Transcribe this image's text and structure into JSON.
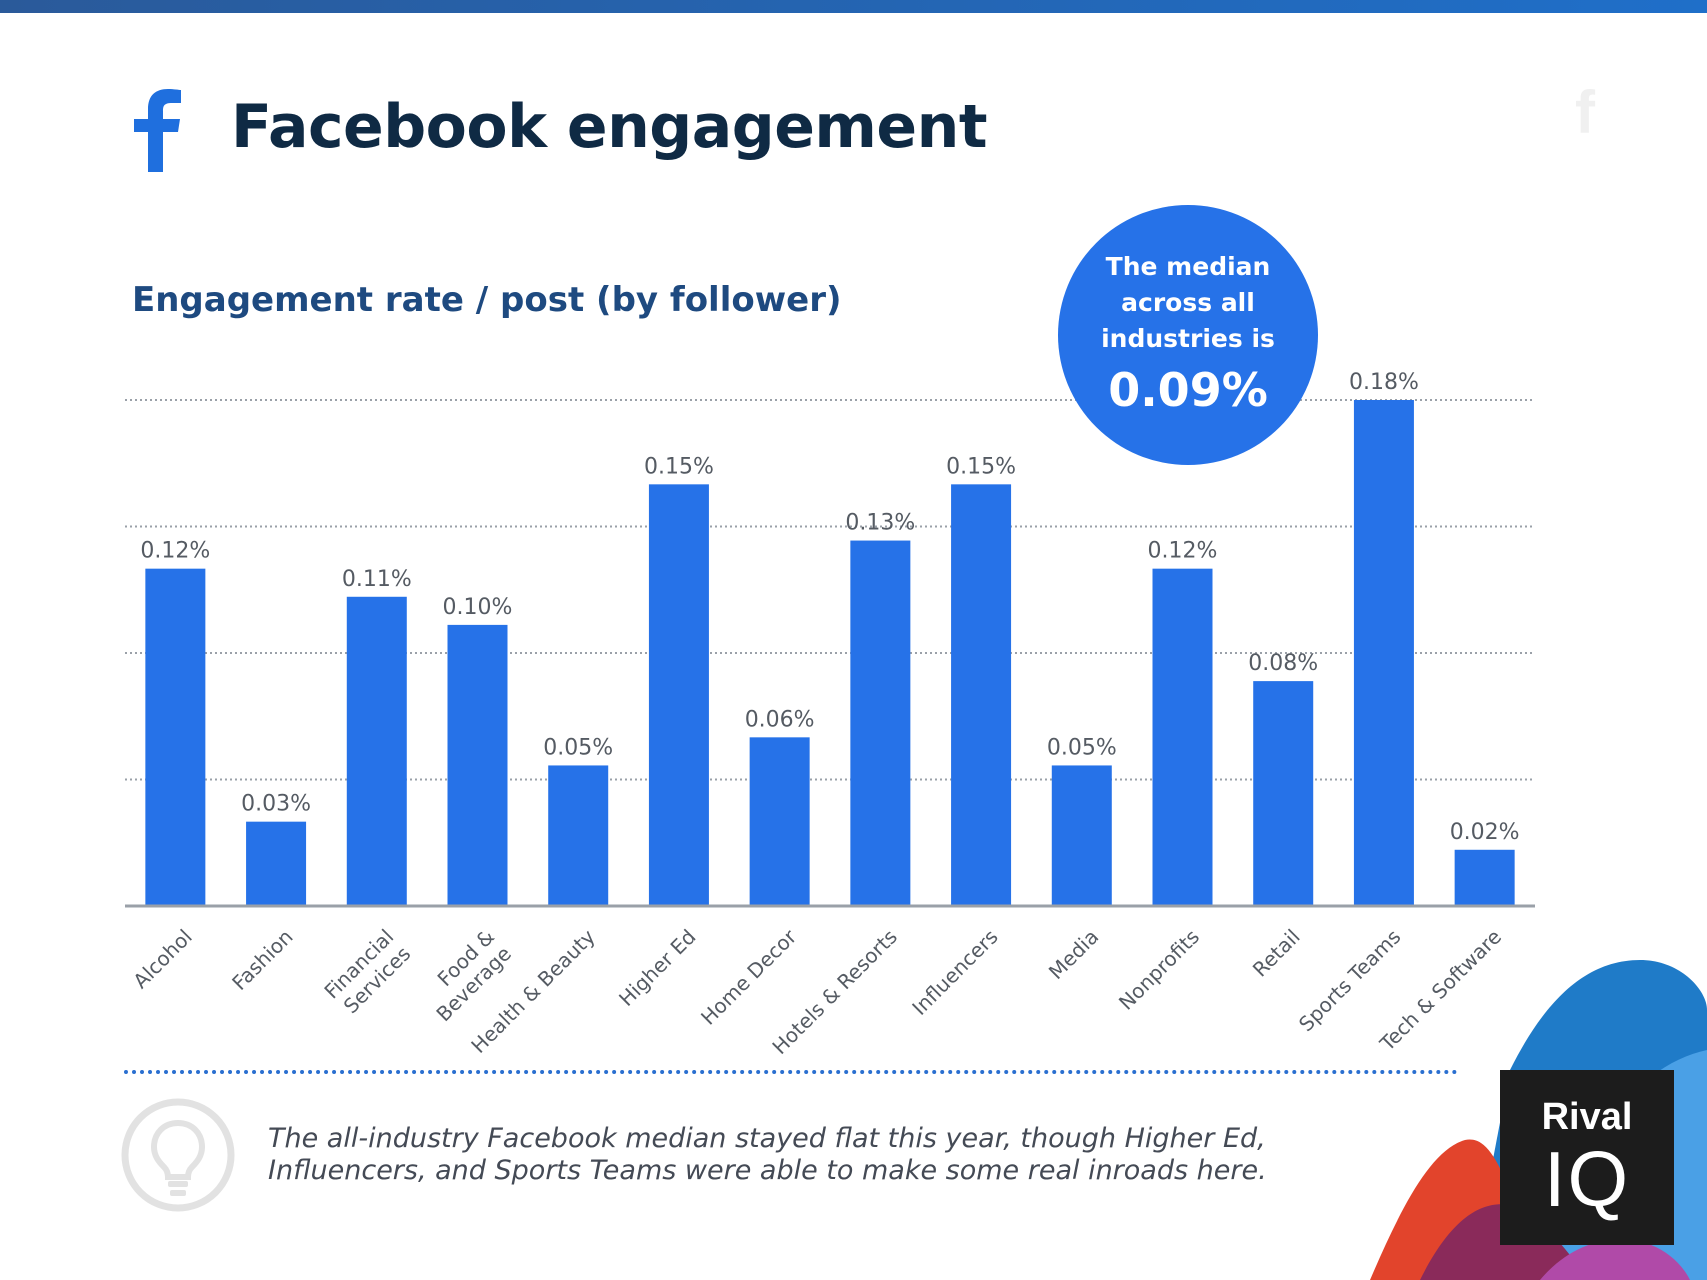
{
  "header": {
    "title": "Facebook engagement"
  },
  "chart_data": {
    "type": "bar",
    "title": "Engagement rate / post (by follower)",
    "categories": [
      "Alcohol",
      "Fashion",
      "Financial\nServices",
      "Food &\nBeverage",
      "Health & Beauty",
      "Higher Ed",
      "Home Decor",
      "Hotels & Resorts",
      "Influencers",
      "Media",
      "Nonprofits",
      "Retail",
      "Sports Teams",
      "Tech & Software"
    ],
    "values": [
      0.12,
      0.03,
      0.11,
      0.1,
      0.05,
      0.15,
      0.06,
      0.13,
      0.15,
      0.05,
      0.12,
      0.08,
      0.18,
      0.02
    ],
    "labels": [
      "0.12%",
      "0.03%",
      "0.11%",
      "0.10%",
      "0.05%",
      "0.15%",
      "0.06%",
      "0.13%",
      "0.15%",
      "0.05%",
      "0.12%",
      "0.08%",
      "0.18%",
      "0.02%"
    ],
    "ylim": [
      0,
      0.18
    ],
    "gridlines": [
      0.045,
      0.09,
      0.135,
      0.18
    ],
    "bar_color": "#2672e8",
    "grid": true
  },
  "median_callout": {
    "text": "The median across all industries is",
    "value": "0.09%"
  },
  "insight": {
    "text": "The all-industry Facebook median stayed flat this year, though Higher Ed, Influencers, and Sports Teams were able to make some real inroads here."
  },
  "brand": {
    "rival": "Rival",
    "iq": "IQ",
    "ghost": "f"
  },
  "colors": {
    "accent": "#2672e8",
    "title": "#0f2a44",
    "subtitle": "#1e4a80"
  }
}
